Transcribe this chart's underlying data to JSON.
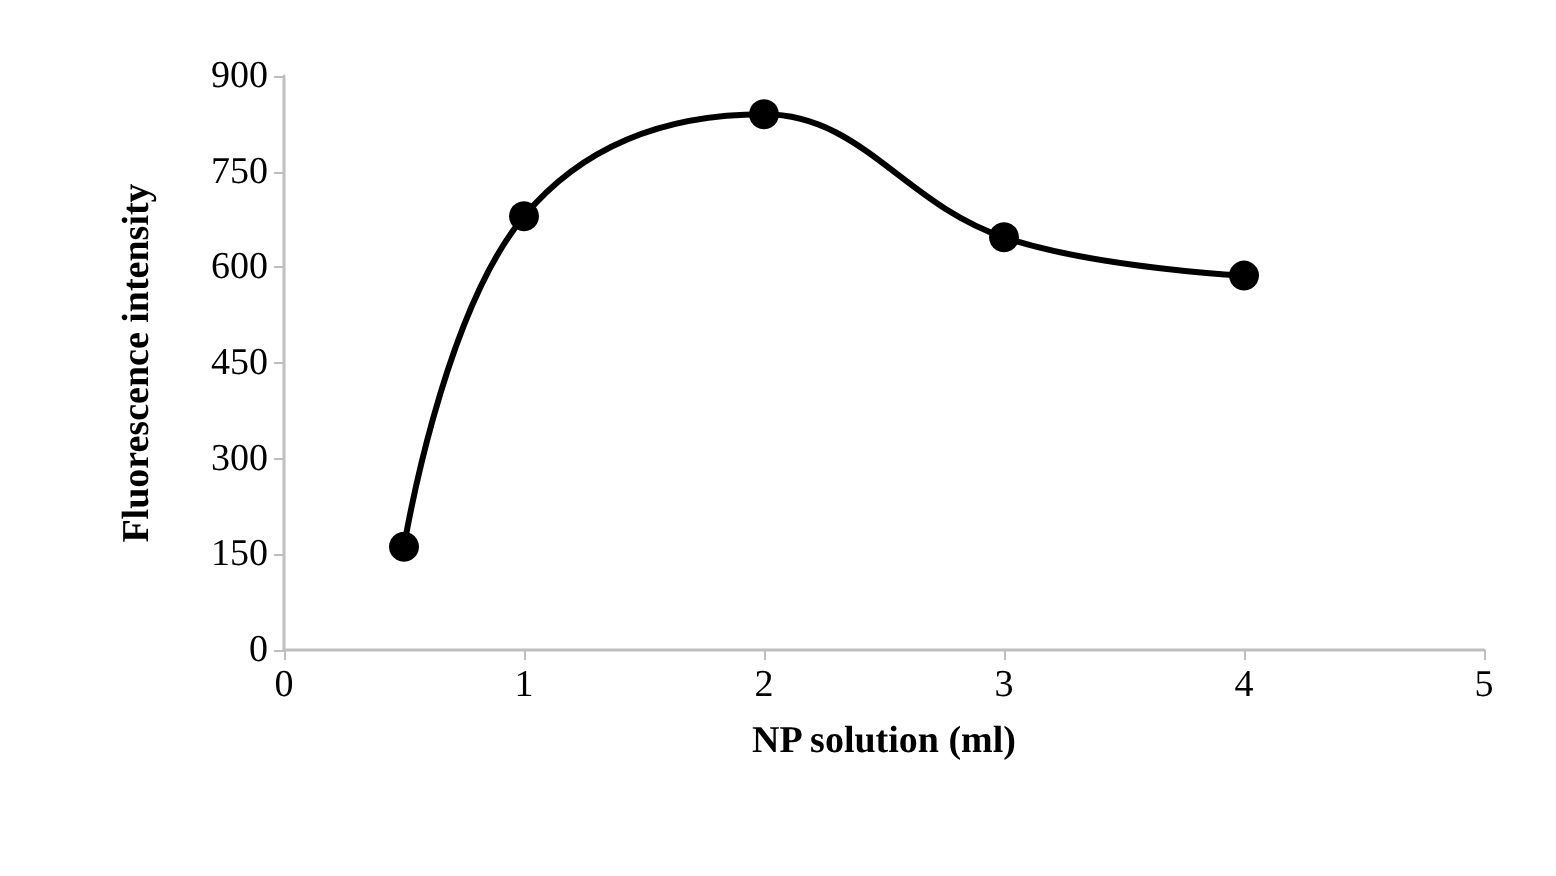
{
  "chart_data": {
    "type": "line",
    "xlabel": "NP solution (ml)",
    "ylabel": "Fluorescence intensity",
    "x": [
      0.5,
      1,
      2,
      3,
      4
    ],
    "series": [
      {
        "color": "#000000",
        "values": [
          162,
          680,
          840,
          647,
          587
        ]
      }
    ],
    "xlim": [
      0,
      5
    ],
    "xticks": [
      0,
      1,
      2,
      3,
      4,
      5
    ],
    "ylim": [
      0,
      900
    ],
    "yticks": [
      0,
      150,
      300,
      450,
      600,
      750,
      900
    ],
    "grid": false,
    "marker": "circle",
    "line_style": "solid"
  }
}
